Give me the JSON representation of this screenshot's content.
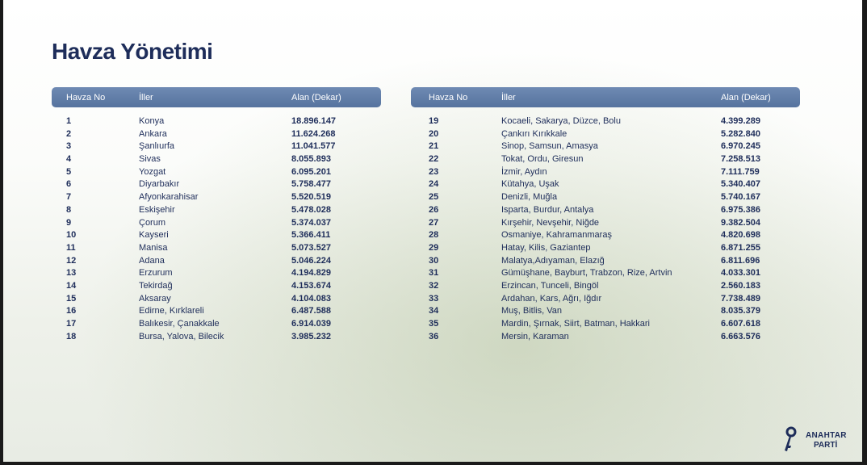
{
  "title": "Havza Yönetimi",
  "columns": {
    "no": "Havza No",
    "provinces": "İller",
    "area": "Alan (Dekar)"
  },
  "left_rows": [
    {
      "no": "1",
      "provinces": "Konya",
      "area": "18.896.147"
    },
    {
      "no": "2",
      "provinces": "Ankara",
      "area": "11.624.268"
    },
    {
      "no": "3",
      "provinces": "Şanlıurfa",
      "area": "11.041.577"
    },
    {
      "no": "4",
      "provinces": "Sivas",
      "area": "8.055.893"
    },
    {
      "no": "5",
      "provinces": "Yozgat",
      "area": "6.095.201"
    },
    {
      "no": "6",
      "provinces": "Diyarbakır",
      "area": "5.758.477"
    },
    {
      "no": "7",
      "provinces": "Afyonkarahisar",
      "area": "5.520.519"
    },
    {
      "no": "8",
      "provinces": "Eskişehir",
      "area": "5.478.028"
    },
    {
      "no": "9",
      "provinces": "Çorum",
      "area": "5.374.037"
    },
    {
      "no": "10",
      "provinces": "Kayseri",
      "area": "5.366.411"
    },
    {
      "no": "11",
      "provinces": "Manisa",
      "area": "5.073.527"
    },
    {
      "no": "12",
      "provinces": "Adana",
      "area": "5.046.224"
    },
    {
      "no": "13",
      "provinces": "Erzurum",
      "area": "4.194.829"
    },
    {
      "no": "14",
      "provinces": "Tekirdağ",
      "area": "4.153.674"
    },
    {
      "no": "15",
      "provinces": "Aksaray",
      "area": "4.104.083"
    },
    {
      "no": "16",
      "provinces": "Edirne, Kırklareli",
      "area": "6.487.588"
    },
    {
      "no": "17",
      "provinces": "Balıkesir, Çanakkale",
      "area": "6.914.039"
    },
    {
      "no": "18",
      "provinces": "Bursa, Yalova, Bilecik",
      "area": "3.985.232"
    }
  ],
  "right_rows": [
    {
      "no": "19",
      "provinces": "Kocaeli, Sakarya, Düzce, Bolu",
      "area": "4.399.289"
    },
    {
      "no": "20",
      "provinces": "Çankırı Kırıkkale",
      "area": "5.282.840"
    },
    {
      "no": "21",
      "provinces": "Sinop, Samsun, Amasya",
      "area": "6.970.245"
    },
    {
      "no": "22",
      "provinces": "Tokat, Ordu, Giresun",
      "area": "7.258.513"
    },
    {
      "no": "23",
      "provinces": "İzmir, Aydın",
      "area": "7.111.759"
    },
    {
      "no": "24",
      "provinces": "Kütahya, Uşak",
      "area": "5.340.407"
    },
    {
      "no": "25",
      "provinces": "Denizli, Muğla",
      "area": "5.740.167"
    },
    {
      "no": "26",
      "provinces": "Isparta, Burdur, Antalya",
      "area": "6.975.386"
    },
    {
      "no": "27",
      "provinces": "Kırşehir, Nevşehir, Niğde",
      "area": "9.382.504"
    },
    {
      "no": "28",
      "provinces": "Osmaniye, Kahramanmaraş",
      "area": "4.820.698"
    },
    {
      "no": "29",
      "provinces": "Hatay, Kilis, Gaziantep",
      "area": "6.871.255"
    },
    {
      "no": "30",
      "provinces": "Malatya,Adıyaman, Elazığ",
      "area": "6.811.696"
    },
    {
      "no": "31",
      "provinces": "Gümüşhane, Bayburt, Trabzon, Rize, Artvin",
      "area": "4.033.301"
    },
    {
      "no": "32",
      "provinces": "Erzincan, Tunceli, Bingöl",
      "area": "2.560.183"
    },
    {
      "no": "33",
      "provinces": "Ardahan, Kars, Ağrı, Iğdır",
      "area": "7.738.489"
    },
    {
      "no": "34",
      "provinces": "Muş, Bitlis, Van",
      "area": "8.035.379"
    },
    {
      "no": "35",
      "provinces": "Mardin, Şırnak, Siirt, Batman, Hakkari",
      "area": "6.607.618"
    },
    {
      "no": "36",
      "provinces": "Mersin, Karaman",
      "area": "6.663.576"
    }
  ],
  "logo": {
    "line1": "ANAHTAR",
    "line2": "PARTİ",
    "icon": "key-icon"
  },
  "colors": {
    "title": "#1e2d5a",
    "header": "#6380aa",
    "text": "#1e2d5a"
  }
}
